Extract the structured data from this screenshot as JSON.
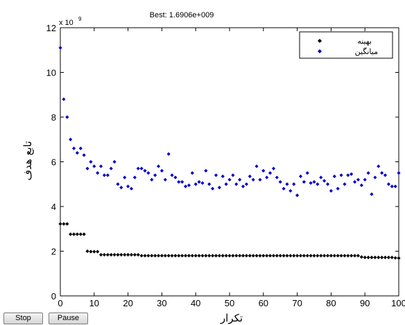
{
  "chart_data": {
    "type": "scatter",
    "title": "Best: 1.6906e+009",
    "exponent_label": "x 10",
    "exponent_power": "9",
    "xlabel": "تکرار",
    "ylabel": "تابع هدف",
    "xlim": [
      0,
      100
    ],
    "ylim": [
      0,
      12
    ],
    "x_ticks": [
      0,
      10,
      20,
      30,
      40,
      50,
      60,
      70,
      80,
      90,
      100
    ],
    "y_ticks": [
      0,
      2,
      4,
      6,
      8,
      10,
      12
    ],
    "grid": false,
    "legend_position": "top-right",
    "series": [
      {
        "name": "بهینه",
        "color": "#000000",
        "marker": "diamond",
        "x": [
          0,
          1,
          2,
          3,
          4,
          5,
          6,
          7,
          8,
          9,
          10,
          11,
          12,
          13,
          14,
          15,
          16,
          17,
          18,
          19,
          20,
          21,
          22,
          23,
          24,
          25,
          26,
          27,
          28,
          29,
          30,
          31,
          32,
          33,
          34,
          35,
          36,
          37,
          38,
          39,
          40,
          41,
          42,
          43,
          44,
          45,
          46,
          47,
          48,
          49,
          50,
          51,
          52,
          53,
          54,
          55,
          56,
          57,
          58,
          59,
          60,
          61,
          62,
          63,
          64,
          65,
          66,
          67,
          68,
          69,
          70,
          71,
          72,
          73,
          74,
          75,
          76,
          77,
          78,
          79,
          80,
          81,
          82,
          83,
          84,
          85,
          86,
          87,
          88,
          89,
          90,
          91,
          92,
          93,
          94,
          95,
          96,
          97,
          98,
          99,
          100
        ],
        "y": [
          3.22,
          3.22,
          3.22,
          2.76,
          2.76,
          2.76,
          2.76,
          2.76,
          2.0,
          1.98,
          1.98,
          1.98,
          1.84,
          1.84,
          1.84,
          1.84,
          1.84,
          1.84,
          1.84,
          1.84,
          1.84,
          1.84,
          1.84,
          1.84,
          1.8,
          1.8,
          1.8,
          1.8,
          1.8,
          1.8,
          1.8,
          1.8,
          1.8,
          1.8,
          1.8,
          1.8,
          1.8,
          1.8,
          1.8,
          1.8,
          1.8,
          1.8,
          1.8,
          1.8,
          1.8,
          1.8,
          1.8,
          1.8,
          1.8,
          1.8,
          1.8,
          1.8,
          1.8,
          1.8,
          1.8,
          1.8,
          1.8,
          1.8,
          1.8,
          1.8,
          1.8,
          1.8,
          1.8,
          1.8,
          1.8,
          1.8,
          1.8,
          1.8,
          1.8,
          1.8,
          1.8,
          1.8,
          1.8,
          1.8,
          1.8,
          1.8,
          1.8,
          1.8,
          1.8,
          1.8,
          1.8,
          1.8,
          1.8,
          1.8,
          1.8,
          1.8,
          1.8,
          1.8,
          1.8,
          1.74,
          1.72,
          1.72,
          1.72,
          1.72,
          1.72,
          1.72,
          1.72,
          1.72,
          1.72,
          1.7,
          1.69
        ]
      },
      {
        "name": "میانگین",
        "color": "#0000cc",
        "marker": "diamond",
        "x": [
          0,
          1,
          2,
          3,
          4,
          5,
          6,
          7,
          8,
          9,
          10,
          11,
          12,
          13,
          14,
          15,
          16,
          17,
          18,
          19,
          20,
          21,
          22,
          23,
          24,
          25,
          26,
          27,
          28,
          29,
          30,
          31,
          32,
          33,
          34,
          35,
          36,
          37,
          38,
          39,
          40,
          41,
          42,
          43,
          44,
          45,
          46,
          47,
          48,
          49,
          50,
          51,
          52,
          53,
          54,
          55,
          56,
          57,
          58,
          59,
          60,
          61,
          62,
          63,
          64,
          65,
          66,
          67,
          68,
          69,
          70,
          71,
          72,
          73,
          74,
          75,
          76,
          77,
          78,
          79,
          80,
          81,
          82,
          83,
          84,
          85,
          86,
          87,
          88,
          89,
          90,
          91,
          92,
          93,
          94,
          95,
          96,
          97,
          98,
          99,
          100
        ],
        "y": [
          11.1,
          8.8,
          8.0,
          7.0,
          6.6,
          6.4,
          6.6,
          6.3,
          5.7,
          6.0,
          5.8,
          5.5,
          5.8,
          5.4,
          5.4,
          5.7,
          6.0,
          5.0,
          4.85,
          5.3,
          4.9,
          4.8,
          5.3,
          5.7,
          5.7,
          5.6,
          5.5,
          5.2,
          5.4,
          5.8,
          5.6,
          5.2,
          6.35,
          5.4,
          5.3,
          5.1,
          5.1,
          4.9,
          4.95,
          5.5,
          5.0,
          5.1,
          5.05,
          5.6,
          5.0,
          4.8,
          5.4,
          4.85,
          5.35,
          5.0,
          5.2,
          5.4,
          5.0,
          5.2,
          4.9,
          5.0,
          5.35,
          5.2,
          5.8,
          5.2,
          5.6,
          5.3,
          5.5,
          5.7,
          5.3,
          5.1,
          4.8,
          5.0,
          4.7,
          5.0,
          4.5,
          5.35,
          5.1,
          5.5,
          5.05,
          5.1,
          5.0,
          5.3,
          5.15,
          5.0,
          4.7,
          5.35,
          4.8,
          5.4,
          5.0,
          5.4,
          5.45,
          5.1,
          5.2,
          4.95,
          5.2,
          5.5,
          4.55,
          5.3,
          5.8,
          5.5,
          5.4,
          5.0,
          4.9,
          4.9,
          5.5
        ]
      }
    ]
  },
  "controls": {
    "stop_label": "Stop",
    "pause_label": "Pause"
  }
}
